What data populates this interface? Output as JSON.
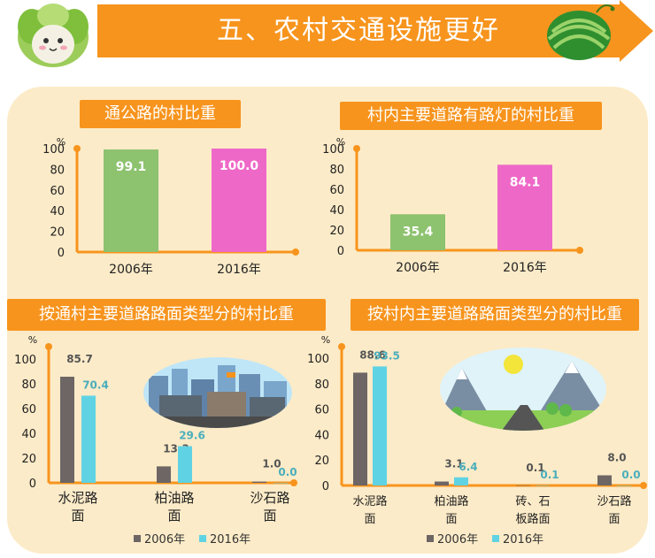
{
  "header": {
    "title": "五、农村交通设施更好"
  },
  "colors": {
    "orange": "#f7941d",
    "green": "#8dc26f",
    "pink": "#ee68c7",
    "gray": "#6d6665",
    "cyan": "#5fd3e4"
  },
  "chart_data": [
    {
      "type": "bar",
      "title": "通公路的村比重",
      "ylabel": "%",
      "categories": [
        "2006年",
        "2016年"
      ],
      "values": [
        99.1,
        100.0
      ],
      "value_labels": [
        "99.1",
        "100.0"
      ],
      "yticks": [
        "0",
        "20",
        "40",
        "60",
        "80",
        "100"
      ],
      "ylim": [
        0,
        100
      ]
    },
    {
      "type": "bar",
      "title": "村内主要道路有路灯的村比重",
      "ylabel": "%",
      "categories": [
        "2006年",
        "2016年"
      ],
      "values": [
        35.4,
        84.1
      ],
      "value_labels": [
        "35.4",
        "84.1"
      ],
      "yticks": [
        "0",
        "20",
        "40",
        "60",
        "80",
        "100"
      ],
      "ylim": [
        0,
        100
      ]
    },
    {
      "type": "bar",
      "title": "按通村主要道路路面类型分的村比重",
      "ylabel": "%",
      "categories": [
        [
          "水泥路",
          "面"
        ],
        [
          "柏油路",
          "面"
        ],
        [
          "沙石路",
          "面"
        ]
      ],
      "series": [
        {
          "name": "2006年",
          "values": [
            85.7,
            13.3,
            1.0
          ],
          "labels": [
            "85.7",
            "13.3",
            "1.0"
          ]
        },
        {
          "name": "2016年",
          "values": [
            70.4,
            29.6,
            0.0
          ],
          "labels": [
            "70.4",
            "29.6",
            "0.0"
          ]
        }
      ],
      "yticks": [
        "0",
        "20",
        "40",
        "60",
        "80",
        "100"
      ],
      "ylim": [
        0,
        100
      ],
      "legend": "bottom"
    },
    {
      "type": "bar",
      "title": "按村内主要道路路面类型分的村比重",
      "ylabel": "%",
      "categories": [
        [
          "水泥路",
          "面"
        ],
        [
          "柏油路",
          "面"
        ],
        [
          "砖、石",
          "板路面"
        ],
        [
          "沙石路",
          "面"
        ]
      ],
      "series": [
        {
          "name": "2006年",
          "values": [
            88.6,
            3.1,
            0.1,
            8.0
          ],
          "labels": [
            "88.6",
            "3.1",
            "0.1",
            "8.0"
          ]
        },
        {
          "name": "2016年",
          "values": [
            93.5,
            6.4,
            0.1,
            0.0
          ],
          "labels": [
            "93.5",
            "6.4",
            "0.1",
            "0.0"
          ]
        }
      ],
      "yticks": [
        "0",
        "20",
        "40",
        "60",
        "80",
        "100"
      ],
      "ylim": [
        0,
        100
      ],
      "legend": "bottom"
    }
  ]
}
